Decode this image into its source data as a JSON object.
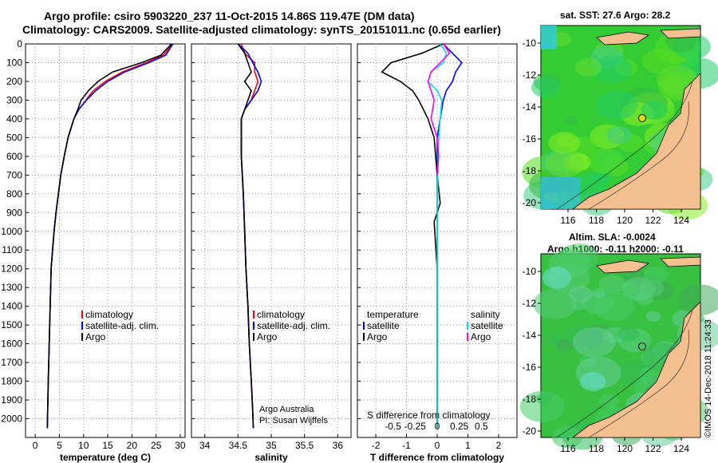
{
  "title_line1": "Argo profile: csiro 5903220_237 11-Oct-2015 14.86S 119.47E (DM data)",
  "title_line2": "Climatology: CARS2009. Satellite-adjusted climatology: synTS_20151011.nc (0.65d earlier)",
  "sst_title": "sat. SST: 27.6 Argo: 28.2",
  "sla_title": "Altim. SLA: -0.0024",
  "sla_title2": "Argo h1000: -0.11 h2000: -0.11",
  "stamp": "©IMOS 14-Dec-2018 11:24:33",
  "credit_line1": "Argo Australia",
  "credit_line2": "PI: Susan Wijffels",
  "diff_title": "S difference from climatology",
  "colors": {
    "climatology": "#ff0000",
    "satellite": "#0000ff",
    "argo": "#000000",
    "sal_sat": "#00e0e0",
    "sal_argo": "#ff00ff",
    "land": "#f5c08f"
  },
  "chart_data": [
    {
      "type": "line",
      "name": "temperature",
      "xlabel": "temperature (deg C)",
      "ylabel": "",
      "xlim": [
        -2,
        31
      ],
      "ylim": [
        2100,
        0
      ],
      "xticks": [
        0,
        5,
        10,
        15,
        20,
        25,
        30
      ],
      "yticks": [
        0,
        100,
        200,
        300,
        400,
        500,
        600,
        700,
        800,
        900,
        1000,
        1100,
        1200,
        1300,
        1400,
        1500,
        1600,
        1700,
        1800,
        1900,
        2000
      ],
      "legend": [
        "climatology",
        "satellite-adj. clim.",
        "Argo"
      ],
      "series": [
        {
          "name": "climatology",
          "color": "#ff0000",
          "x": [
            28.5,
            26.5,
            23,
            18,
            14.5,
            12,
            10.5,
            9,
            8,
            6.8,
            6,
            5.3,
            4.8,
            4.3,
            3.9,
            3.6,
            3.3,
            3.1,
            2.9,
            2.7,
            2.5
          ],
          "y": [
            0,
            60,
            100,
            150,
            200,
            250,
            300,
            350,
            400,
            500,
            600,
            700,
            800,
            900,
            1000,
            1100,
            1200,
            1400,
            1600,
            1800,
            2050
          ]
        },
        {
          "name": "satellite-adj. clim.",
          "color": "#0000ff",
          "x": [
            28.5,
            27,
            23.5,
            18.5,
            15,
            12.5,
            10.6,
            9,
            8,
            6.8,
            6,
            5.3,
            4.8,
            4.3,
            3.9,
            3.6,
            3.3,
            3.1,
            2.9,
            2.7,
            2.5
          ],
          "y": [
            0,
            60,
            100,
            150,
            200,
            250,
            300,
            350,
            400,
            500,
            600,
            700,
            800,
            900,
            1000,
            1100,
            1200,
            1400,
            1600,
            1800,
            2050
          ]
        },
        {
          "name": "Argo",
          "color": "#000000",
          "x": [
            28.2,
            26,
            22,
            16,
            13,
            11,
            9.5,
            8.8,
            8,
            6.8,
            6,
            5.3,
            4.8,
            4.3,
            3.9,
            3.6,
            3.3,
            3.1,
            2.9,
            2.7,
            2.5
          ],
          "y": [
            0,
            60,
            100,
            150,
            200,
            250,
            300,
            350,
            400,
            500,
            600,
            700,
            800,
            900,
            1000,
            1100,
            1200,
            1400,
            1600,
            1800,
            2050
          ]
        }
      ]
    },
    {
      "type": "line",
      "name": "salinity",
      "xlabel": "salinity",
      "xlim": [
        33.8,
        36.2
      ],
      "ylim": [
        2100,
        0
      ],
      "xticks": [
        34,
        34.5,
        35,
        35.5,
        36
      ],
      "legend": [
        "climatology",
        "satellite-adj. clim.",
        "Argo"
      ],
      "series": [
        {
          "name": "climatology",
          "color": "#ff0000",
          "x": [
            34.55,
            34.6,
            34.75,
            34.75,
            34.8,
            34.75,
            34.7,
            34.6,
            34.55,
            34.55,
            34.55,
            34.58,
            34.6,
            34.62,
            34.65,
            34.67,
            34.7,
            34.72,
            34.73
          ],
          "y": [
            0,
            50,
            100,
            150,
            200,
            250,
            300,
            350,
            400,
            500,
            600,
            800,
            1000,
            1200,
            1400,
            1600,
            1800,
            1950,
            2050
          ]
        },
        {
          "name": "satellite-adj. clim.",
          "color": "#0000ff",
          "x": [
            34.5,
            34.65,
            34.72,
            34.8,
            34.85,
            34.8,
            34.7,
            34.6,
            34.55,
            34.55,
            34.55,
            34.58,
            34.6,
            34.62,
            34.65,
            34.67,
            34.7,
            34.72,
            34.73
          ],
          "y": [
            0,
            50,
            100,
            150,
            200,
            250,
            300,
            350,
            400,
            500,
            600,
            800,
            1000,
            1200,
            1400,
            1600,
            1800,
            1950,
            2050
          ]
        },
        {
          "name": "Argo",
          "color": "#000000",
          "x": [
            34.5,
            34.6,
            34.65,
            34.7,
            34.6,
            34.7,
            34.65,
            34.6,
            34.55,
            34.55,
            34.55,
            34.58,
            34.6,
            34.62,
            34.65,
            34.67,
            34.7,
            34.72,
            34.73
          ],
          "y": [
            0,
            50,
            100,
            150,
            200,
            250,
            300,
            350,
            400,
            500,
            600,
            800,
            1000,
            1200,
            1400,
            1600,
            1800,
            1950,
            2050
          ]
        }
      ]
    },
    {
      "type": "line",
      "name": "difference",
      "xlabel": "T difference from climatology",
      "xlim": [
        -2.6,
        2.6
      ],
      "ylim": [
        2100,
        0
      ],
      "xticks": [
        -2,
        -1,
        0,
        1,
        2
      ],
      "sticks": [
        "-0.5",
        "-0.25",
        "0",
        "0.25",
        "0.5"
      ],
      "legend": [
        "temperature",
        "satellite",
        "Argo",
        "salinity",
        "satellite",
        "Argo"
      ],
      "series": [
        {
          "name": "T satellite",
          "color": "#0000ff",
          "x": [
            0.2,
            0.5,
            0.8,
            0.6,
            0.5,
            0.3,
            0.2,
            0.1,
            0,
            0,
            0,
            0
          ],
          "y": [
            0,
            50,
            100,
            150,
            200,
            250,
            300,
            400,
            500,
            800,
            1200,
            2050
          ]
        },
        {
          "name": "T Argo",
          "color": "#000000",
          "x": [
            0.2,
            -0.5,
            -1.5,
            -1.8,
            -1.2,
            -0.8,
            -0.6,
            -0.3,
            -0.1,
            0,
            0.1,
            -0.1,
            0,
            0
          ],
          "y": [
            0,
            50,
            100,
            150,
            200,
            250,
            300,
            400,
            500,
            700,
            850,
            950,
            1200,
            2050
          ]
        },
        {
          "name": "S satellite",
          "color": "#00e0e0",
          "x": [
            0.1,
            0.3,
            0.2,
            -0.2,
            -0.3,
            0,
            0.15,
            0.1,
            0.05,
            0,
            0
          ],
          "y": [
            0,
            50,
            100,
            150,
            200,
            250,
            300,
            400,
            500,
            800,
            2050
          ]
        },
        {
          "name": "S Argo",
          "color": "#ff00ff",
          "x": [
            0.2,
            0.4,
            0.1,
            -0.2,
            -0.3,
            -0.1,
            -0.2,
            0,
            0.05,
            0
          ],
          "y": [
            0,
            50,
            100,
            150,
            200,
            300,
            400,
            500,
            600,
            700
          ]
        }
      ]
    }
  ],
  "maps": {
    "xticks": [
      "116",
      "118",
      "120",
      "122",
      "124"
    ],
    "yticks": [
      "-10",
      "-12",
      "-14",
      "-16",
      "-18",
      "-20"
    ]
  }
}
